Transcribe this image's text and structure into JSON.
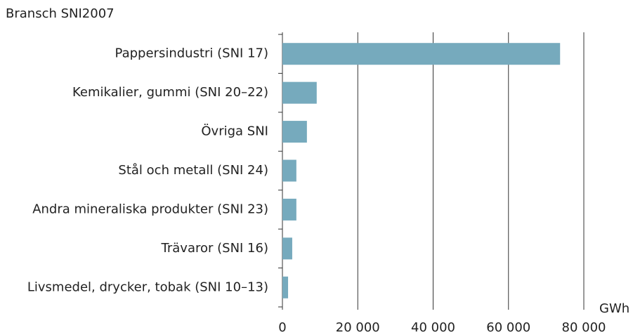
{
  "chart_data": {
    "type": "barh",
    "title": "Bransch SNI2007",
    "x_label": "GWh",
    "categories": [
      "Pappersindustri (SNI 17)",
      "Kemikalier, gummi (SNI 20–22)",
      "Övriga SNI",
      "Stål och metall (SNI 24)",
      "Andra mineraliska produkter (SNI 23)",
      "Trävaror (SNI 16)",
      "Livsmedel, drycker, tobak (SNI 10–13)"
    ],
    "values": [
      73700,
      9100,
      6500,
      3700,
      3700,
      2600,
      1500
    ],
    "color": "#76aabd",
    "xlim": [
      0,
      80000
    ],
    "xticks": [
      0,
      {
        "value": 20000,
        "label": "20 000"
      },
      {
        "value": 40000,
        "label": "40 000"
      },
      {
        "value": 60000,
        "label": "60 000"
      },
      {
        "value": 80000,
        "label": "80 000"
      }
    ],
    "grid": true
  }
}
